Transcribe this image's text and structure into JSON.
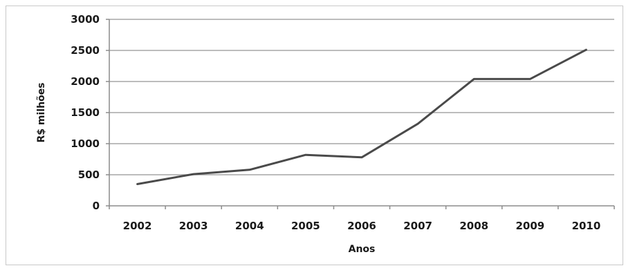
{
  "chart_data": {
    "type": "line",
    "title": "",
    "xlabel": "Anos",
    "ylabel": "R$ milhões",
    "categories": [
      "2002",
      "2003",
      "2004",
      "2005",
      "2006",
      "2007",
      "2008",
      "2009",
      "2010"
    ],
    "series": [
      {
        "values": [
          350,
          510,
          580,
          820,
          780,
          1320,
          2040,
          2040,
          2510
        ]
      }
    ],
    "ylim": [
      0,
      3000
    ],
    "yticks": [
      0,
      500,
      1000,
      1500,
      2000,
      2500,
      3000
    ],
    "grid": "horizontal",
    "legend": "none",
    "colors": {
      "line": "#4a4a4a",
      "grid": "#a6a6a6",
      "axis": "#8c8c8c",
      "text": "#1a1a1a",
      "frame": "#c8c8c8"
    }
  }
}
